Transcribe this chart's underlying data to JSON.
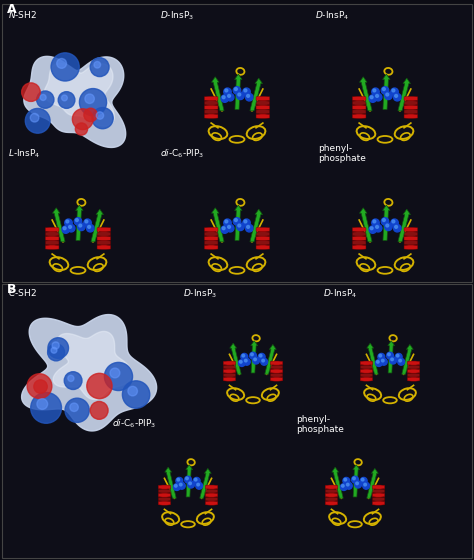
{
  "bg_color": "#0c0c14",
  "panel_bg": "#0c0c14",
  "border_color": "#444444",
  "text_color": "#ffffff",
  "panel_A_label": "A",
  "panel_B_label": "B",
  "panel_A_title": "N-SH2",
  "panel_B_title": "C-SH2",
  "fig_width": 4.74,
  "fig_height": 5.6,
  "dpi": 100,
  "yellow_color": "#d4b200",
  "green_color": "#22aa22",
  "red_color": "#cc1111",
  "blue_color": "#1144cc",
  "blue_highlight": "#4488ee"
}
